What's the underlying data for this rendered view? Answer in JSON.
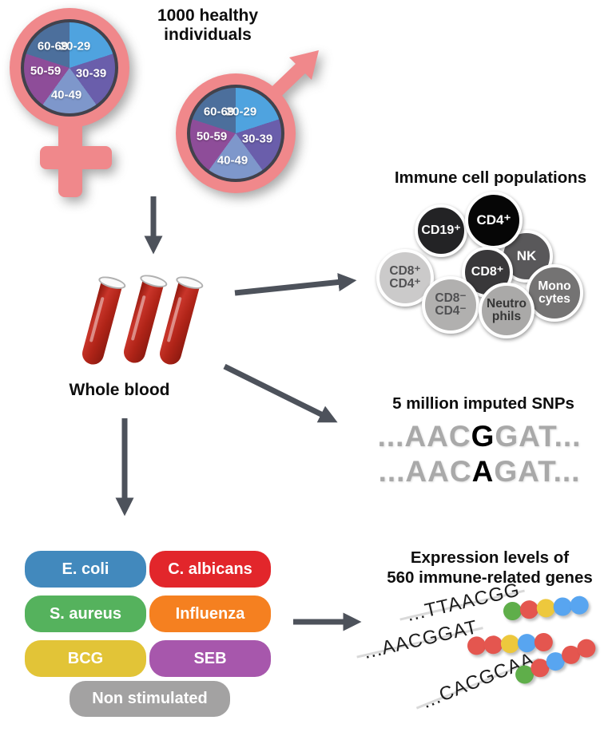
{
  "header": {
    "line1": "1000 healthy",
    "line2": "individuals"
  },
  "demographics": {
    "age_groups": [
      "20-29",
      "30-39",
      "40-49",
      "50-59",
      "60-69"
    ],
    "slice_colors": [
      "#4FA3DF",
      "#6A5EAB",
      "#7E97CB",
      "#8E4D99",
      "#4C6F9C"
    ],
    "female_symbol": "female",
    "male_symbol": "male"
  },
  "whole_blood": {
    "label": "Whole blood"
  },
  "immune": {
    "title": "Immune cell populations",
    "cells": [
      {
        "line1": "CD19⁺",
        "bg": "#232325",
        "fg": "#ffffff"
      },
      {
        "line1": "CD4⁺",
        "bg": "#060606",
        "fg": "#ffffff"
      },
      {
        "line1": "NK",
        "bg": "#59585A",
        "fg": "#ffffff"
      },
      {
        "line1": "CD8⁺",
        "bg": "#39383A",
        "fg": "#ffffff"
      },
      {
        "line1": "CD8⁺",
        "line2": "CD4⁺",
        "bg": "#CBCACA",
        "fg": "#515153"
      },
      {
        "line1": "CD8⁻",
        "line2": "CD4⁻",
        "bg": "#B1B0AF",
        "fg": "#515153"
      },
      {
        "line1": "Neutro",
        "line2": "phils",
        "bg": "#AAA9A8",
        "fg": "#363636"
      },
      {
        "line1": "Mono",
        "line2": "cytes",
        "bg": "#747373",
        "fg": "#ffffff"
      }
    ]
  },
  "snps": {
    "title": "5 million imputed SNPs",
    "lines": [
      {
        "pre": "...AAC",
        "snp": "G",
        "post": "GAT..."
      },
      {
        "pre": "...AAC",
        "snp": "A",
        "post": "GAT..."
      }
    ]
  },
  "stimuli": {
    "items": [
      {
        "label": "E. coli",
        "color": "#4289BD"
      },
      {
        "label": "C. albicans",
        "color": "#E2262B"
      },
      {
        "label": "S. aureus",
        "color": "#55B25D"
      },
      {
        "label": "Influenza",
        "color": "#F58020"
      },
      {
        "label": "BCG",
        "color": "#E2C437"
      },
      {
        "label": "SEB",
        "color": "#A757AC"
      },
      {
        "label": "Non stimulated",
        "color": "#A3A2A2"
      }
    ]
  },
  "expression": {
    "title_line1": "Expression levels of",
    "title_line2": "560 immune-related genes",
    "rows": [
      {
        "seq": "...TTAACGG",
        "dots": [
          "green",
          "red",
          "yellow",
          "blue",
          "blue"
        ]
      },
      {
        "seq": "...AACGGAT",
        "dots": [
          "red",
          "red",
          "yellow",
          "blue",
          "red"
        ]
      },
      {
        "seq": "...CACGCAA",
        "dots": [
          "green",
          "red",
          "blue",
          "red",
          "red"
        ]
      }
    ],
    "dot_colors": {
      "green": "#5FAE4A",
      "red": "#E4564F",
      "yellow": "#EDC83D",
      "blue": "#58A5F0"
    }
  },
  "colors": {
    "arrow": "#4D525B",
    "symbol_pink": "#F0888B",
    "blood_red": "#B3251A"
  }
}
